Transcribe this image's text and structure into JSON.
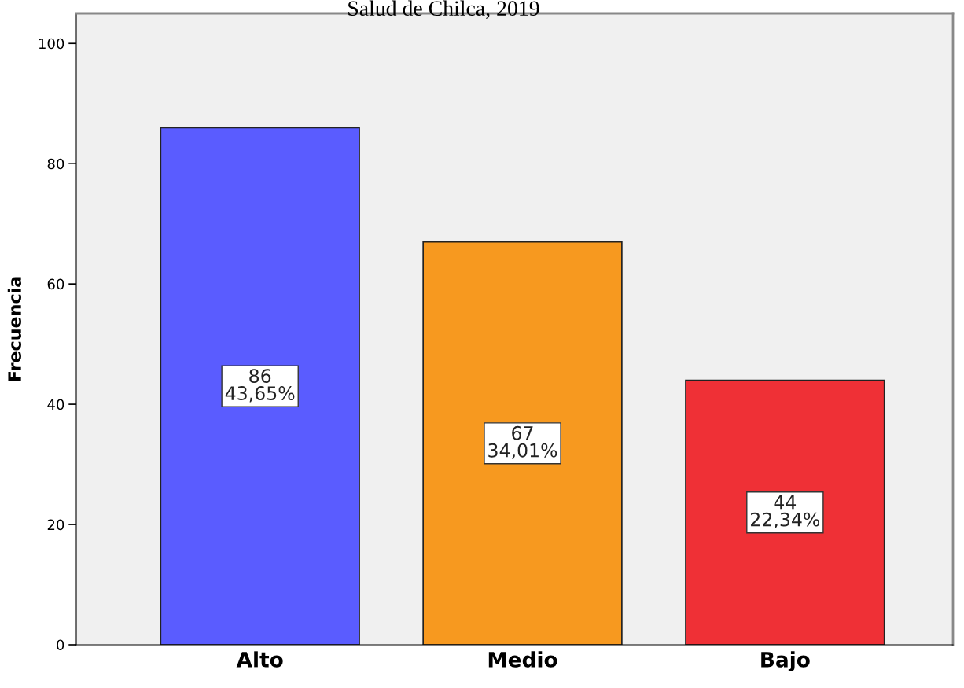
{
  "chart_data": {
    "type": "bar",
    "title": "Salud de Chilca, 2019",
    "ylabel": "Frecuencia",
    "categories": [
      "Alto",
      "Medio",
      "Bajo"
    ],
    "values": [
      86,
      67,
      44
    ],
    "colors": [
      "#5a5cff",
      "#f7991f",
      "#ef3036"
    ],
    "value_labels": [
      "86\n43,65%",
      "67\n34,01%",
      "44\n22,34%"
    ],
    "ylim": [
      0,
      105
    ],
    "yticks": [
      0,
      20,
      40,
      60,
      80,
      100
    ],
    "grid": false
  }
}
